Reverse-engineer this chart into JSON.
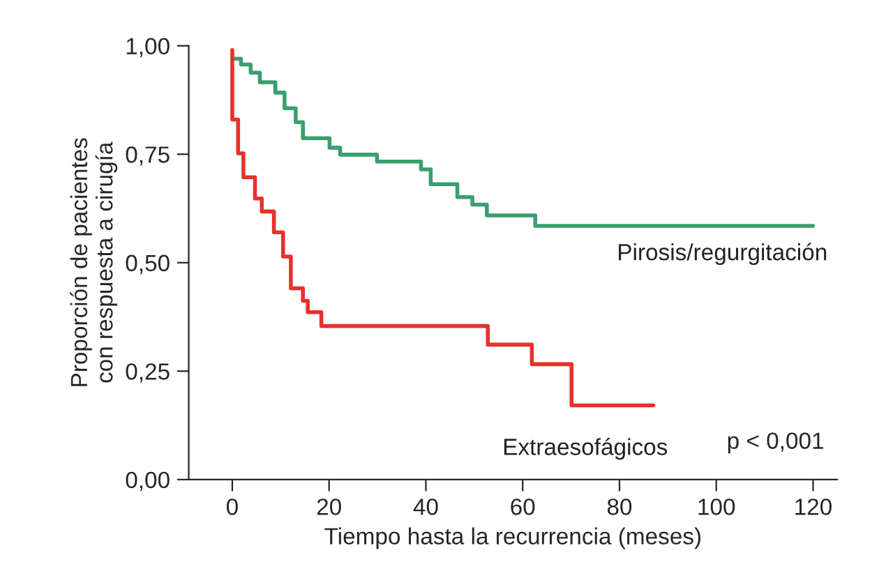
{
  "chart_data": {
    "type": "step",
    "xlabel": "Tiempo hasta la recurrencia (meses)",
    "ylabel": "Proporción de pacientes\ncon respuesta a cirugía",
    "xlim": [
      -9,
      125
    ],
    "xticks": [
      0,
      20,
      40,
      60,
      80,
      100,
      120
    ],
    "ylim": [
      0,
      1
    ],
    "yticks": [
      {
        "value": 0,
        "label": "0,00"
      },
      {
        "value": 0.25,
        "label": "0,25"
      },
      {
        "value": 0.5,
        "label": "0,50"
      },
      {
        "value": 0.75,
        "label": "0,75"
      },
      {
        "value": 1,
        "label": "1,00"
      }
    ],
    "grid": false,
    "legend": false,
    "series": [
      {
        "name": "Pirosis/regurgitación",
        "color": "#3a9e6e",
        "x": [
          0,
          1.8,
          3.8,
          5.7,
          8.9,
          10.8,
          13.1,
          14.6,
          20.1,
          22.3,
          29.9,
          39.0,
          41.0,
          46.5,
          49.6,
          52.6,
          62.6,
          120
        ],
        "values": [
          0.97,
          0.957,
          0.938,
          0.916,
          0.892,
          0.856,
          0.824,
          0.787,
          0.765,
          0.749,
          0.733,
          0.715,
          0.681,
          0.651,
          0.634,
          0.609,
          0.585,
          0.585
        ]
      },
      {
        "name": "Extraesofágicos",
        "color": "#e8312c",
        "x": [
          0,
          0,
          1.2,
          2.3,
          4.7,
          6.1,
          8.6,
          10.5,
          12.1,
          14.6,
          15.6,
          18.4,
          52.8,
          61.9,
          70.1,
          87
        ],
        "values": [
          0.99,
          0.83,
          0.752,
          0.697,
          0.648,
          0.618,
          0.57,
          0.514,
          0.441,
          0.412,
          0.386,
          0.354,
          0.311,
          0.266,
          0.171,
          0.171
        ]
      }
    ],
    "annotations": [
      "p < 0,001"
    ]
  }
}
